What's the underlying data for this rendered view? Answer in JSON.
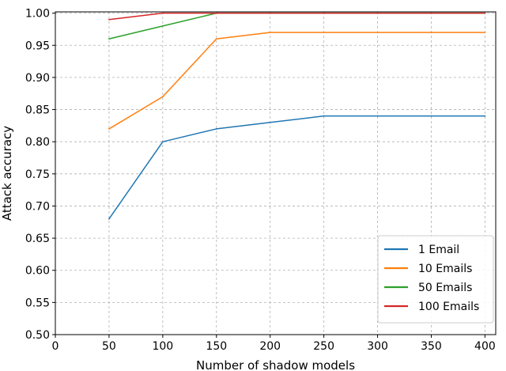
{
  "chart_data": {
    "type": "line",
    "xlabel": "Number of shadow models",
    "ylabel": "Attack accuracy",
    "xlim": [
      0,
      410
    ],
    "ylim": [
      0.5,
      1.002
    ],
    "x_ticks": [
      0,
      50,
      100,
      150,
      200,
      250,
      300,
      350,
      400
    ],
    "y_ticks": [
      0.5,
      0.55,
      0.6,
      0.65,
      0.7,
      0.75,
      0.8,
      0.85,
      0.9,
      0.95,
      1.0
    ],
    "x_tick_labels": [
      "0",
      "50",
      "100",
      "150",
      "200",
      "250",
      "300",
      "350",
      "400"
    ],
    "y_tick_labels": [
      "0.50",
      "0.55",
      "0.60",
      "0.65",
      "0.70",
      "0.75",
      "0.80",
      "0.85",
      "0.90",
      "0.95",
      "1.00"
    ],
    "grid": true,
    "legend_position": "bottom-right",
    "x": [
      50,
      100,
      150,
      200,
      250,
      300,
      350,
      400
    ],
    "series": [
      {
        "name": "1 Email",
        "color": "#1f77b4",
        "values": [
          0.68,
          0.8,
          0.82,
          0.83,
          0.84,
          0.84,
          0.84,
          0.84
        ]
      },
      {
        "name": "10 Emails",
        "color": "#ff7f0e",
        "values": [
          0.82,
          0.87,
          0.96,
          0.97,
          0.97,
          0.97,
          0.97,
          0.97
        ]
      },
      {
        "name": "50 Emails",
        "color": "#2ca02c",
        "values": [
          0.96,
          0.98,
          1.0,
          1.0,
          1.0,
          1.0,
          1.0,
          1.0
        ]
      },
      {
        "name": "100 Emails",
        "color": "#d62728",
        "values": [
          0.99,
          1.0,
          1.0,
          1.0,
          1.0,
          1.0,
          1.0,
          1.0
        ]
      }
    ]
  }
}
